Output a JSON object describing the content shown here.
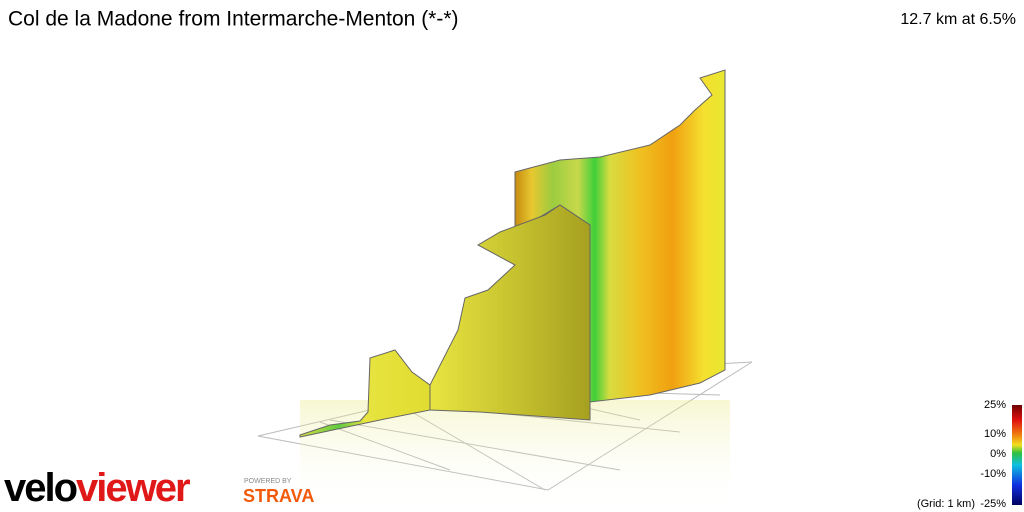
{
  "header": {
    "title": "Col de la Madone from Intermarche-Menton (*-*)",
    "summary": "12.7 km at 6.5%"
  },
  "legend": {
    "labels": [
      "25%",
      "10%",
      "0%",
      "-10%",
      "-25%"
    ],
    "grid_note": "(Grid: 1 km)"
  },
  "logo": {
    "part1": "velo",
    "part2": "viewer",
    "powered_by": "POWERED BY",
    "partner": "STRAVA"
  }
}
